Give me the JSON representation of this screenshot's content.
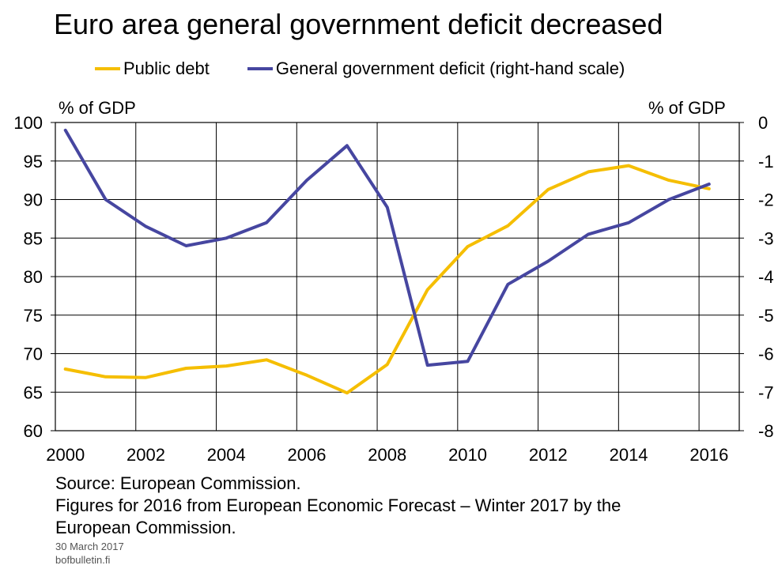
{
  "title": "Euro area general government deficit decreased",
  "legend": {
    "items": [
      {
        "label": "Public debt",
        "color": "#F5BE00"
      },
      {
        "label": "General government deficit (right-hand scale)",
        "color": "#4646A0"
      }
    ]
  },
  "axis_units": {
    "left": "% of GDP",
    "right": "% of GDP"
  },
  "notes": {
    "source": "Source: European Commission.",
    "line2": "Figures for 2016 from European Economic Forecast – Winter 2017 by the",
    "line3": "European Commission.",
    "date": "30 March 2017",
    "site": "bofbulletin.fi"
  },
  "chart_data": {
    "type": "line",
    "title": "Euro area general government deficit decreased",
    "xlabel": "",
    "ylabel": "% of GDP",
    "y2label": "% of GDP",
    "x": [
      2000,
      2001,
      2002,
      2003,
      2004,
      2005,
      2006,
      2007,
      2008,
      2009,
      2010,
      2011,
      2012,
      2013,
      2014,
      2015,
      2016
    ],
    "x_ticks": [
      "2000",
      "2002",
      "2004",
      "2006",
      "2008",
      "2010",
      "2012",
      "2014",
      "2016"
    ],
    "ylim": [
      60,
      100
    ],
    "y_ticks": [
      "60",
      "65",
      "70",
      "75",
      "80",
      "85",
      "90",
      "95",
      "100"
    ],
    "y2lim": [
      -8,
      0
    ],
    "y2_ticks": [
      "0",
      "-1",
      "-2",
      "-3",
      "-4",
      "-5",
      "-6",
      "-7",
      "-8"
    ],
    "grid": true,
    "legend_position": "top",
    "series": [
      {
        "name": "Public debt",
        "axis": "left",
        "color": "#F5BE00",
        "values": [
          68.0,
          67.0,
          66.9,
          68.1,
          68.4,
          69.2,
          67.2,
          64.9,
          68.6,
          78.3,
          83.9,
          86.6,
          91.3,
          93.6,
          94.4,
          92.5,
          91.4
        ]
      },
      {
        "name": "General government deficit (right-hand scale)",
        "axis": "right",
        "color": "#4646A0",
        "values": [
          -0.2,
          -2.0,
          -2.7,
          -3.2,
          -3.0,
          -2.6,
          -1.5,
          -0.6,
          -2.2,
          -6.3,
          -6.2,
          -4.2,
          -3.6,
          -2.9,
          -2.6,
          -2.0,
          -1.6
        ]
      }
    ]
  }
}
